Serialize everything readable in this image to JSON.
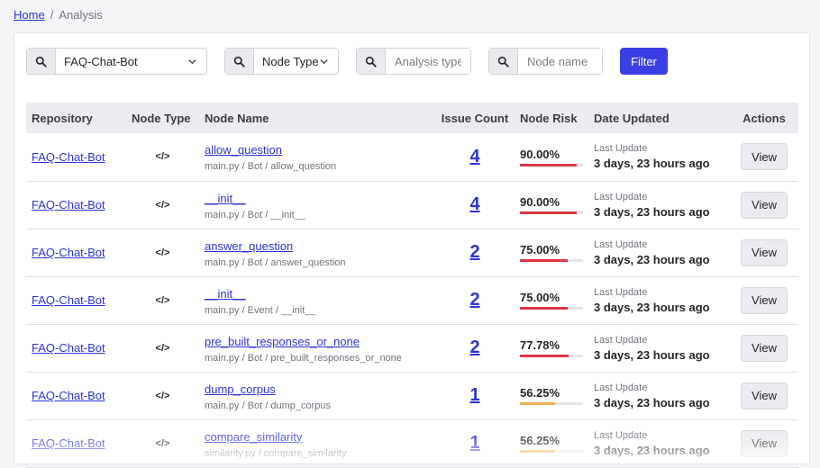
{
  "breadcrumb": {
    "home": "Home",
    "separator": "/",
    "current": "Analysis"
  },
  "filters": {
    "repository_value": "FAQ-Chat-Bot",
    "node_type_value": "Node Type",
    "analysis_type_placeholder": "Analysis type",
    "node_name_placeholder": "Node name",
    "filter_label": "Filter"
  },
  "table": {
    "headers": [
      "Repository",
      "Node Type",
      "Node Name",
      "Issue Count",
      "Node Risk",
      "Date Updated",
      "Actions"
    ],
    "rows": [
      {
        "repo": "FAQ-Chat-Bot",
        "type_icon": "</>",
        "name": "allow_question",
        "path": "main.py / Bot / allow_question",
        "issues": "4",
        "risk": "90.00%",
        "risk_fraction": 0.9,
        "risk_color": "#dc3545",
        "updated_label": "Last Update",
        "updated": "3 days, 23 hours ago",
        "action": "View"
      },
      {
        "repo": "FAQ-Chat-Bot",
        "type_icon": "</>",
        "name": "__init__",
        "path": "main.py / Bot / __init__",
        "issues": "4",
        "risk": "90.00%",
        "risk_fraction": 0.9,
        "risk_color": "#dc3545",
        "updated_label": "Last Update",
        "updated": "3 days, 23 hours ago",
        "action": "View"
      },
      {
        "repo": "FAQ-Chat-Bot",
        "type_icon": "</>",
        "name": "answer_question",
        "path": "main.py / Bot / answer_question",
        "issues": "2",
        "risk": "75.00%",
        "risk_fraction": 0.75,
        "risk_color": "#dc3545",
        "updated_label": "Last Update",
        "updated": "3 days, 23 hours ago",
        "action": "View"
      },
      {
        "repo": "FAQ-Chat-Bot",
        "type_icon": "</>",
        "name": "__init__",
        "path": "main.py / Event / __init__",
        "issues": "2",
        "risk": "75.00%",
        "risk_fraction": 0.75,
        "risk_color": "#dc3545",
        "updated_label": "Last Update",
        "updated": "3 days, 23 hours ago",
        "action": "View"
      },
      {
        "repo": "FAQ-Chat-Bot",
        "type_icon": "</>",
        "name": "pre_built_responses_or_none",
        "path": "main.py / Bot / pre_built_responses_or_none",
        "issues": "2",
        "risk": "77.78%",
        "risk_fraction": 0.7778,
        "risk_color": "#dc3545",
        "updated_label": "Last Update",
        "updated": "3 days, 23 hours ago",
        "action": "View"
      },
      {
        "repo": "FAQ-Chat-Bot",
        "type_icon": "</>",
        "name": "dump_corpus",
        "path": "main.py / Bot / dump_corpus",
        "issues": "1",
        "risk": "56.25%",
        "risk_fraction": 0.5625,
        "risk_color": "#f0ad4e",
        "updated_label": "Last Update",
        "updated": "3 days, 23 hours ago",
        "action": "View"
      },
      {
        "repo": "FAQ-Chat-Bot",
        "type_icon": "</>",
        "name": "compare_similarity",
        "path": "similarity.py / compare_similarity",
        "issues": "1",
        "risk": "56.25%",
        "risk_fraction": 0.5625,
        "risk_color": "#f0ad4e",
        "updated_label": "Last Update",
        "updated": "3 days, 23 hours ago",
        "action": "View"
      }
    ]
  }
}
